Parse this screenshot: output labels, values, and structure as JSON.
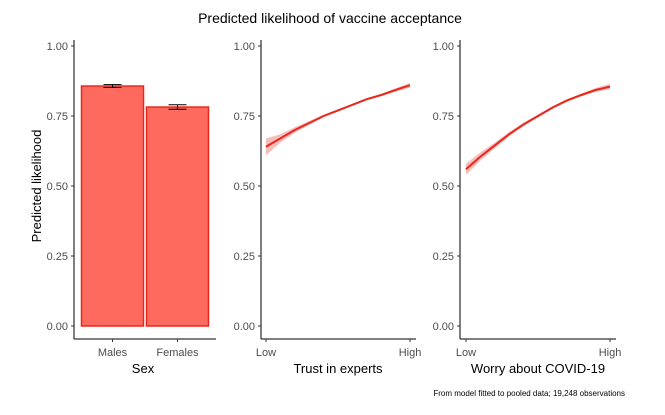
{
  "title": "Predicted likelihood of vaccine acceptance",
  "caption": "From model fitted to pooled data; 19,248 observations",
  "colors": {
    "bar_fill": "#ff6a5f",
    "bar_stroke": "#e8281e",
    "line": "#e8281e",
    "ribbon": "#f4b3ae",
    "errorbar": "#000000"
  },
  "chart_data": [
    {
      "type": "bar",
      "categories": [
        "Males",
        "Females"
      ],
      "values": [
        0.857,
        0.782
      ],
      "error_low": [
        0.852,
        0.774
      ],
      "error_high": [
        0.862,
        0.79
      ],
      "xlabel": "Sex",
      "ylabel": "Predicted likelihood",
      "ylim": [
        0,
        1
      ],
      "yticks": [
        "0.00",
        "0.25",
        "0.50",
        "0.75",
        "1.00"
      ],
      "grid": false
    },
    {
      "type": "line",
      "x": [
        0,
        0.1,
        0.2,
        0.3,
        0.4,
        0.5,
        0.6,
        0.7,
        0.8,
        0.9,
        1.0
      ],
      "y": [
        0.64,
        0.67,
        0.7,
        0.725,
        0.75,
        0.77,
        0.79,
        0.81,
        0.825,
        0.843,
        0.86
      ],
      "ci_low": [
        0.61,
        0.655,
        0.69,
        0.718,
        0.745,
        0.766,
        0.787,
        0.806,
        0.821,
        0.837,
        0.851
      ],
      "ci_high": [
        0.67,
        0.685,
        0.71,
        0.732,
        0.755,
        0.774,
        0.793,
        0.814,
        0.829,
        0.849,
        0.869
      ],
      "xticks": [
        "Low",
        "High"
      ],
      "xlabel": "Trust in experts",
      "ylim": [
        0,
        1
      ],
      "yticks": [
        "0.00",
        "0.25",
        "0.50",
        "0.75",
        "1.00"
      ],
      "grid": false
    },
    {
      "type": "line",
      "x": [
        0,
        0.1,
        0.2,
        0.3,
        0.4,
        0.5,
        0.6,
        0.7,
        0.8,
        0.9,
        1.0
      ],
      "y": [
        0.56,
        0.605,
        0.645,
        0.685,
        0.72,
        0.75,
        0.78,
        0.805,
        0.825,
        0.843,
        0.855
      ],
      "ci_low": [
        0.54,
        0.59,
        0.635,
        0.677,
        0.714,
        0.745,
        0.775,
        0.8,
        0.82,
        0.836,
        0.845
      ],
      "ci_high": [
        0.58,
        0.62,
        0.655,
        0.693,
        0.726,
        0.755,
        0.785,
        0.81,
        0.83,
        0.85,
        0.865
      ],
      "xticks": [
        "Low",
        "High"
      ],
      "xlabel": "Worry about COVID-19",
      "ylim": [
        0,
        1
      ],
      "yticks": [
        "0.00",
        "0.25",
        "0.50",
        "0.75",
        "1.00"
      ],
      "grid": false
    }
  ]
}
